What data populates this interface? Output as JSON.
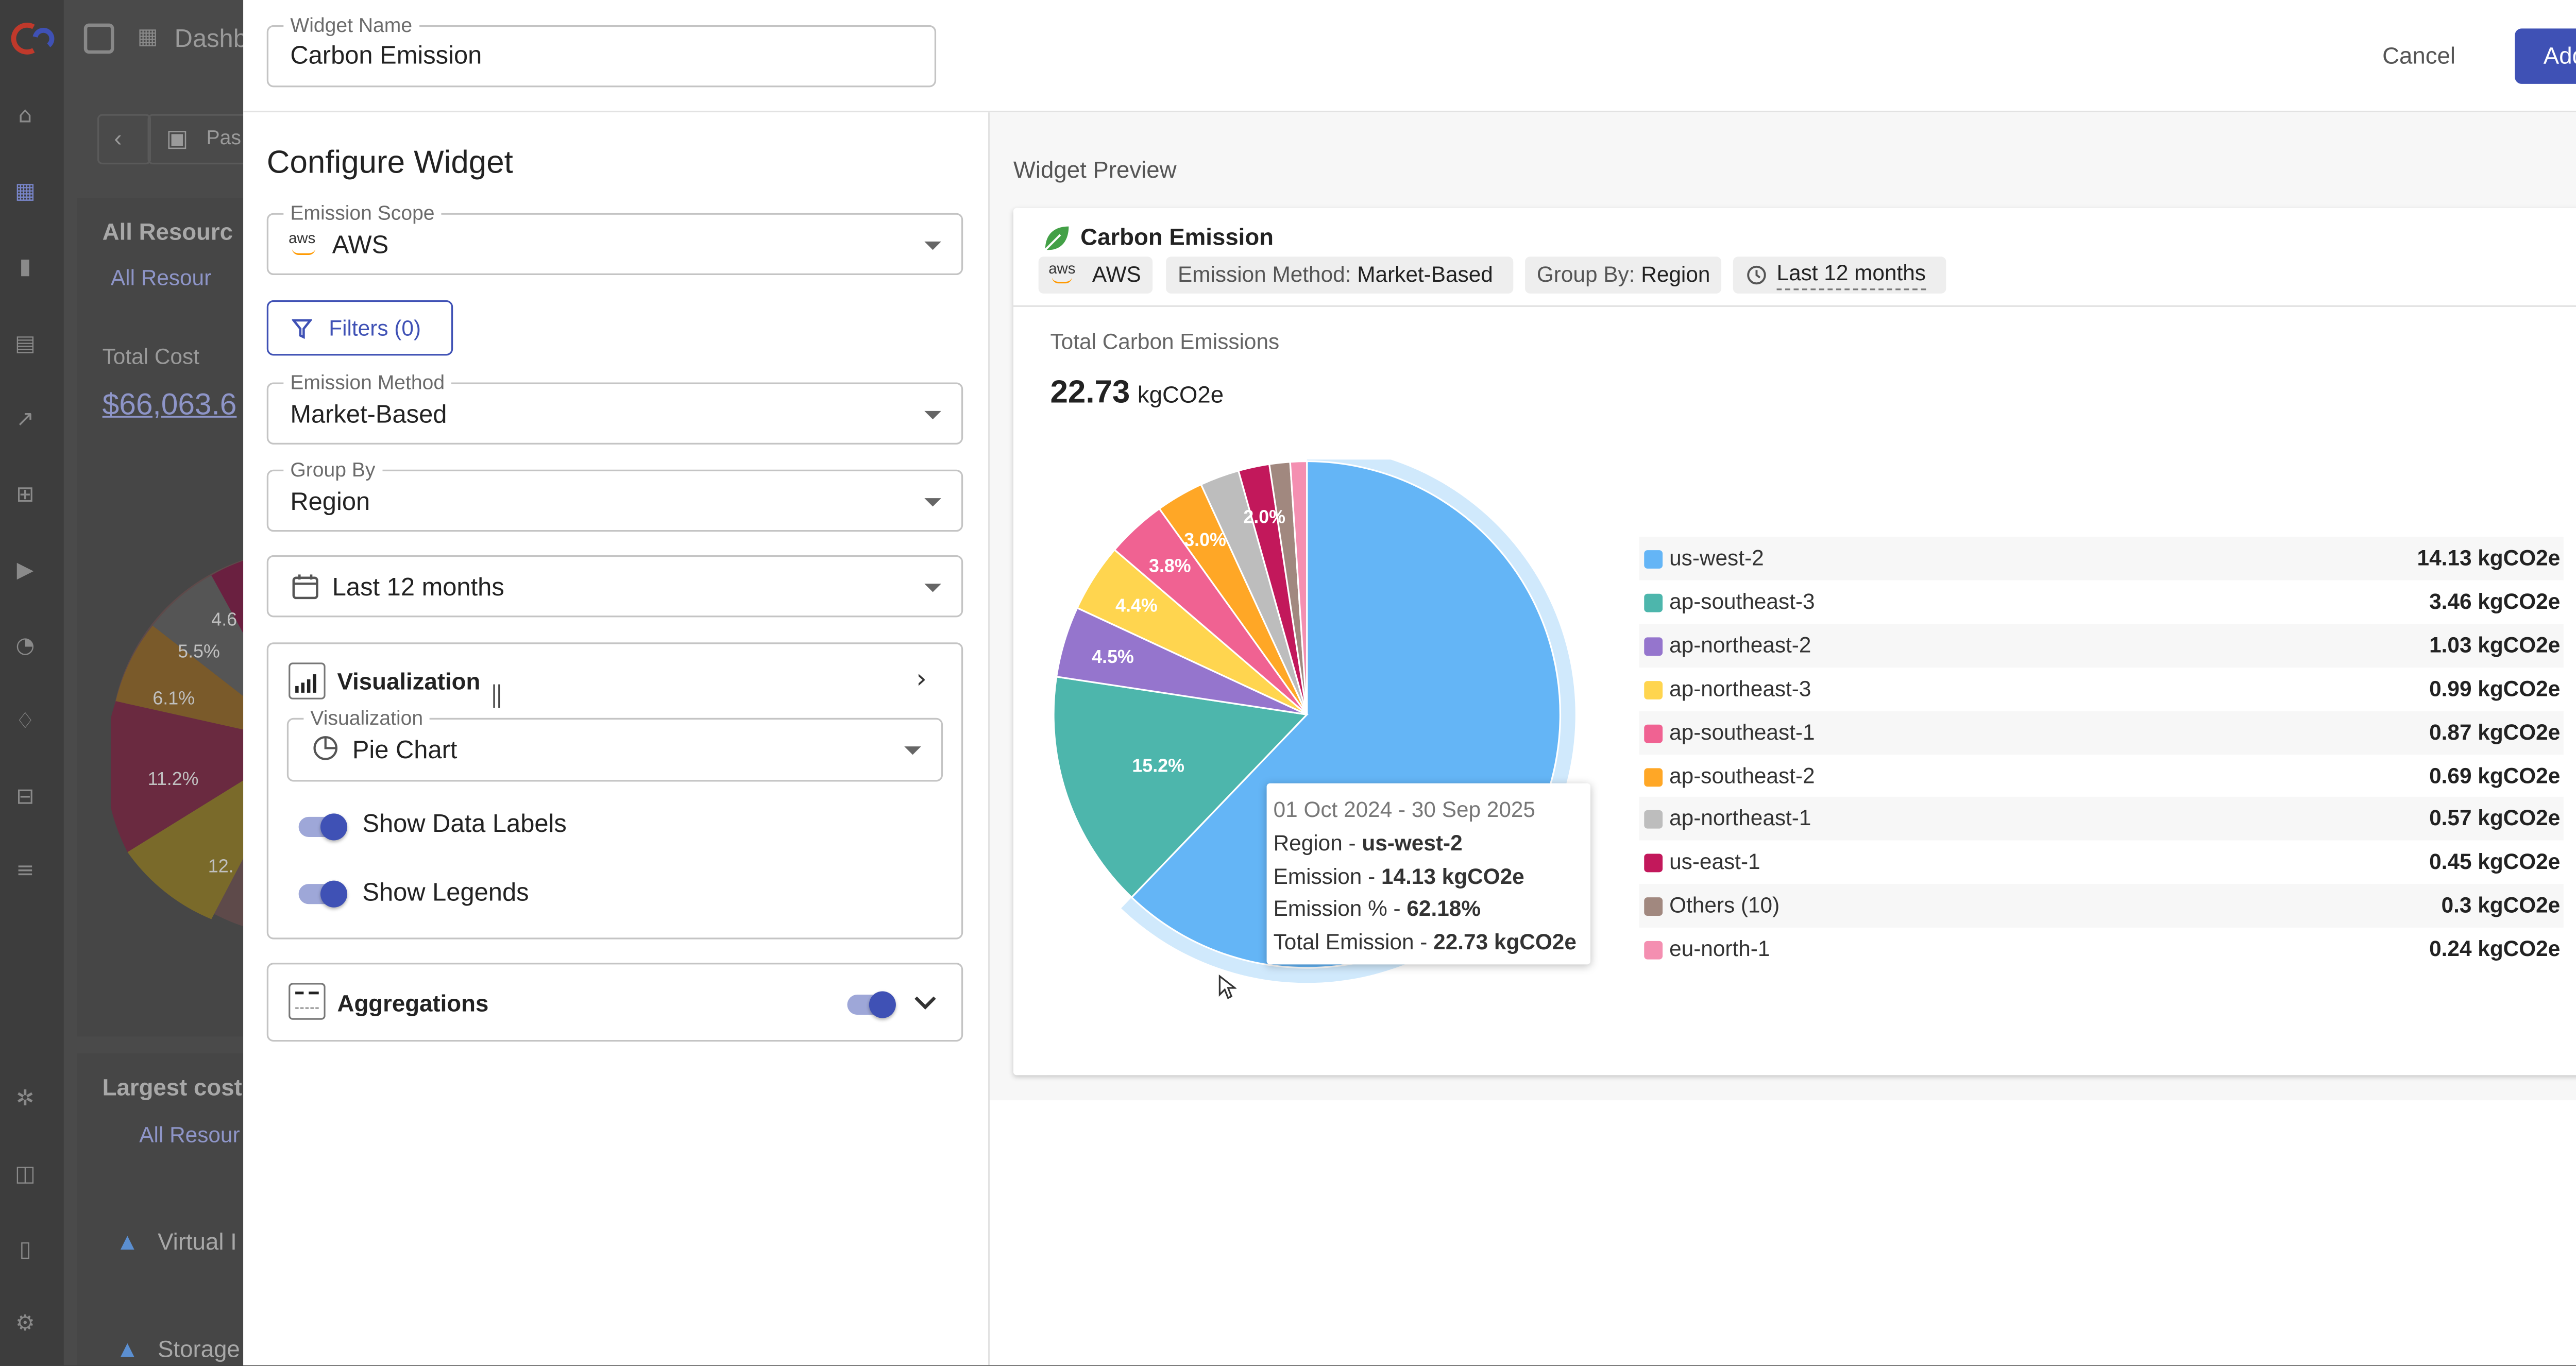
{
  "background": {
    "dashboard_label": "Dashb",
    "period_label": "Pas",
    "section1_title": "All Resourc",
    "section1_link": "All Resour",
    "total_cost_label": "Total Cost",
    "total_cost_value": "$66,063.6",
    "pie_labels": [
      "4.6",
      "5.5%",
      "6.1%",
      "11.2%",
      "12."
    ],
    "section2_title": "Largest cost",
    "section2_link": "All Resour",
    "row1": "Virtual I",
    "row2": "Storage"
  },
  "header": {
    "widget_name_label": "Widget Name",
    "widget_name_value": "Carbon Emission",
    "cancel_label": "Cancel",
    "add_label": "Add"
  },
  "config": {
    "title": "Configure Widget",
    "emission_scope": {
      "label": "Emission Scope",
      "icon_text": "aws",
      "value": "AWS"
    },
    "filters_label": "Filters (0)",
    "emission_method": {
      "label": "Emission Method",
      "value": "Market-Based"
    },
    "group_by": {
      "label": "Group By",
      "value": "Region"
    },
    "date_range": {
      "value": "Last 12 months"
    },
    "visualization": {
      "section_title": "Visualization",
      "field_label": "Visualization",
      "value": "Pie Chart",
      "show_data_labels": {
        "label": "Show Data Labels",
        "on": true
      },
      "show_legends": {
        "label": "Show Legends",
        "on": true
      }
    },
    "aggregations": {
      "label": "Aggregations",
      "on": true
    }
  },
  "preview": {
    "title": "Widget Preview",
    "card_title": "Carbon Emission",
    "chips": {
      "scope_icon_text": "aws",
      "scope": "AWS",
      "method_key": "Emission Method:",
      "method_value": "Market-Based",
      "group_key": "Group By:",
      "group_value": "Region",
      "period": "Last 12 months"
    },
    "total_label": "Total Carbon Emissions",
    "total_value": "22.73",
    "total_unit": "kgCO2e",
    "tooltip": {
      "date_range": "01 Oct 2024 - 30 Sep 2025",
      "region_key": "Region - ",
      "region_value": "us-west-2",
      "emission_key": "Emission - ",
      "emission_value": "14.13 kgCO2e",
      "pct_key": "Emission % - ",
      "pct_value": "62.18%",
      "total_key": "Total Emission - ",
      "total_value": "22.73 kgCO2e"
    }
  },
  "chart_data": {
    "type": "pie",
    "unit": "kgCO2e",
    "highlighted": "us-west-2",
    "slices": [
      {
        "name": "us-west-2",
        "value": 14.13,
        "value_label": "14.13 kgCO2e",
        "data_label": "",
        "color": "#64b5f6"
      },
      {
        "name": "ap-southeast-3",
        "value": 3.46,
        "value_label": "3.46 kgCO2e",
        "data_label": "15.2%",
        "color": "#4db6ac"
      },
      {
        "name": "ap-northeast-2",
        "value": 1.03,
        "value_label": "1.03 kgCO2e",
        "data_label": "4.5%",
        "color": "#9575cd"
      },
      {
        "name": "ap-northeast-3",
        "value": 0.99,
        "value_label": "0.99 kgCO2e",
        "data_label": "4.4%",
        "color": "#ffd54f"
      },
      {
        "name": "ap-southeast-1",
        "value": 0.87,
        "value_label": "0.87 kgCO2e",
        "data_label": "3.8%",
        "color": "#f06292"
      },
      {
        "name": "ap-southeast-2",
        "value": 0.69,
        "value_label": "0.69 kgCO2e",
        "data_label": "3.0%",
        "color": "#ffa726"
      },
      {
        "name": "ap-northeast-1",
        "value": 0.57,
        "value_label": "0.57 kgCO2e",
        "data_label": "",
        "color": "#bdbdbd"
      },
      {
        "name": "us-east-1",
        "value": 0.45,
        "value_label": "0.45 kgCO2e",
        "data_label": "2.0%",
        "color": "#c2185b"
      },
      {
        "name": "Others (10)",
        "value": 0.3,
        "value_label": "0.3 kgCO2e",
        "data_label": "",
        "color": "#a1887f"
      },
      {
        "name": "eu-north-1",
        "value": 0.24,
        "value_label": "0.24 kgCO2e",
        "data_label": "",
        "color": "#f48fb1"
      }
    ],
    "legend_position": "right"
  }
}
